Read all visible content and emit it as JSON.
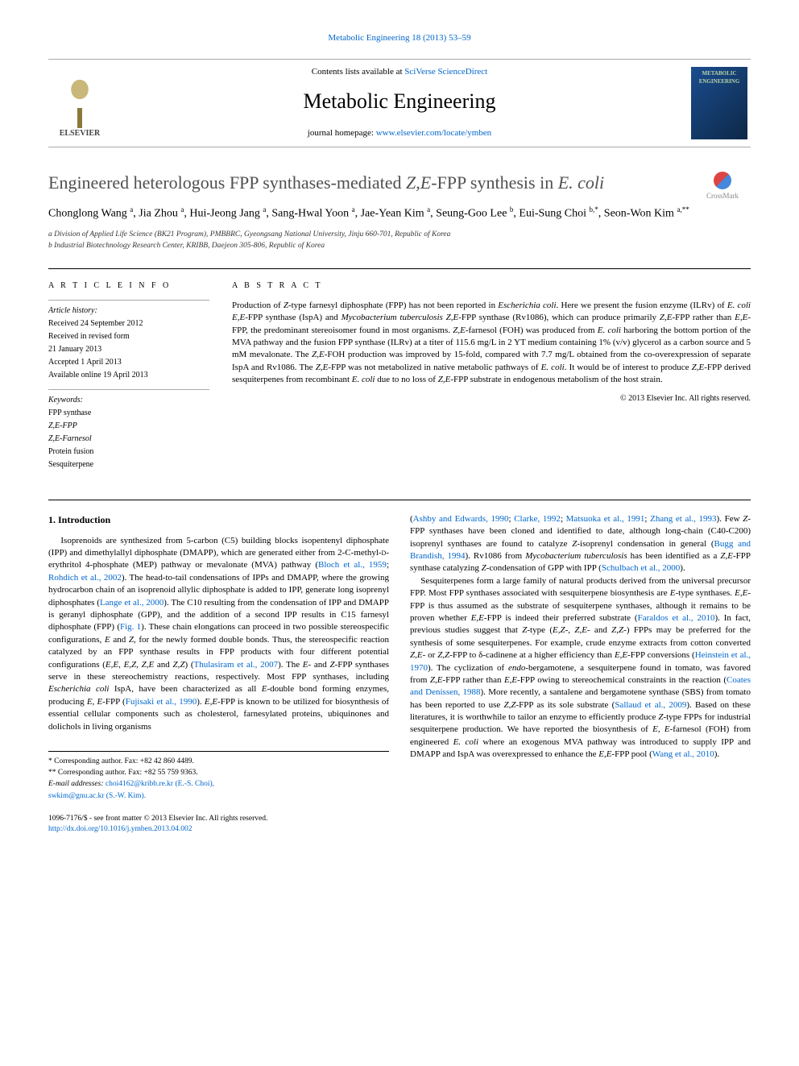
{
  "header_link": {
    "prefix": "",
    "journal": "Metabolic Engineering 18 (2013) 53–59"
  },
  "journal_box": {
    "contents_prefix": "Contents lists available at ",
    "contents_link": "SciVerse ScienceDirect",
    "journal_title": "Metabolic Engineering",
    "homepage_prefix": "journal homepage: ",
    "homepage_link": "www.elsevier.com/locate/ymben",
    "elsevier_label": "ELSEVIER",
    "cover_label": "METABOLIC ENGINEERING"
  },
  "crossmark": "CrossMark",
  "article_title_html": "Engineered heterologous FPP synthases-mediated <i>Z,E</i>-FPP synthesis in <i>E. coli</i>",
  "authors_html": "Chonglong Wang <sup>a</sup>, Jia Zhou <sup>a</sup>, Hui-Jeong Jang <sup>a</sup>, Sang-Hwal Yoon <sup>a</sup>, Jae-Yean Kim <sup>a</sup>, Seung-Goo Lee <sup>b</sup>, Eui-Sung Choi <sup>b,*</sup>, Seon-Won Kim <sup>a,**</sup>",
  "affiliations": [
    "a Division of Applied Life Science (BK21 Program), PMBBRC, Gyeongsang National University, Jinju 660-701, Republic of Korea",
    "b Industrial Biotechnology Research Center, KRIBB, Daejeon 305-806, Republic of Korea"
  ],
  "info": {
    "heading": "A R T I C L E   I N F O",
    "history_label": "Article history:",
    "history": [
      "Received 24 September 2012",
      "Received in revised form",
      "21 January 2013",
      "Accepted 1 April 2013",
      "Available online 19 April 2013"
    ],
    "keywords_label": "Keywords:",
    "keywords": [
      "FPP synthase",
      "Z,E-FPP",
      "Z,E-Farnesol",
      "Protein fusion",
      "Sesquiterpene"
    ]
  },
  "abstract": {
    "heading": "A B S T R A C T",
    "text_html": "Production of <i>Z</i>-type farnesyl diphosphate (FPP) has not been reported in <i>Escherichia coli</i>. Here we present the fusion enzyme (ILRv) of <i>E. coli E,E</i>-FPP synthase (IspA) and <i>Mycobacterium tuberculosis Z,E</i>-FPP synthase (Rv1086), which can produce primarily <i>Z,E</i>-FPP rather than <i>E,E</i>-FPP, the predominant stereoisomer found in most organisms. <i>Z,E</i>-farnesol (FOH) was produced from <i>E. coli</i> harboring the bottom portion of the MVA pathway and the fusion FPP synthase (ILRv) at a titer of 115.6 mg/L in 2 YT medium containing 1% (v/v) glycerol as a carbon source and 5 mM mevalonate. The <i>Z,E</i>-FOH production was improved by 15-fold, compared with 7.7 mg/L obtained from the co-overexpression of separate IspA and Rv1086. The <i>Z,E</i>-FPP was not metabolized in native metabolic pathways of <i>E. coli</i>. It would be of interest to produce <i>Z,E</i>-FPP derived sesquiterpenes from recombinant <i>E. coli</i> due to no loss of <i>Z,E</i>-FPP substrate in endogenous metabolism of the host strain.",
    "copyright": "© 2013 Elsevier Inc. All rights reserved."
  },
  "intro": {
    "heading": "1.  Introduction",
    "col1_html": "Isoprenoids are synthesized from 5-carbon (C5) building blocks isopentenyl diphosphate (IPP) and dimethylallyl diphosphate (DMAPP), which are generated either from 2-C-methyl-<span style='font-variant:small-caps'>d</span>-erythritol 4-phosphate (MEP) pathway or mevalonate (MVA) pathway (<a href='#'>Bloch et al., 1959</a>; <a href='#'>Rohdich et al., 2002</a>). The head-to-tail condensations of IPPs and DMAPP, where the growing hydrocarbon chain of an isoprenoid allylic diphosphate is added to IPP, generate long isoprenyl diphosphates (<a href='#'>Lange et al., 2000</a>). The C10 resulting from the condensation of IPP and DMAPP is geranyl diphosphate (GPP), and the addition of a second IPP results in C15 farnesyl diphosphate (FPP) (<a href='#'>Fig. 1</a>). These chain elongations can proceed in two possible stereospecific configurations, <i>E</i> and <i>Z</i>, for the newly formed double bonds. Thus, the stereospecific reaction catalyzed by an FPP synthase results in FPP products with four different potential configurations (<i>E,E</i>, <i>E,Z</i>, <i>Z,E</i> and <i>Z,Z</i>) (<a href='#'>Thulasiram et al., 2007</a>). The <i>E</i>- and <i>Z</i>-FPP synthases serve in these stereochemistry reactions, respectively. Most FPP synthases, including <i>Escherichia coli</i> IspA, have been characterized as all <i>E</i>-double bond forming enzymes, producing <i>E, E</i>-FPP (<a href='#'>Fujisaki et al., 1990</a>). <i>E,E</i>-FPP is known to be utilized for biosynthesis of essential cellular components such as cholesterol, farnesylated proteins, ubiquinones and dolichols in living organisms",
    "col2_html": "(<a href='#'>Ashby and Edwards, 1990</a>; <a href='#'>Clarke, 1992</a>; <a href='#'>Matsuoka et al., 1991</a>; <a href='#'>Zhang et al., 1993</a>). Few <i>Z</i>-FPP synthases have been cloned and identified to date, although long-chain (C40-C200) isoprenyl synthases are found to catalyze <i>Z</i>-isoprenyl condensation in general (<a href='#'>Bugg and Brandish, 1994</a>). Rv1086 from <i>Mycobacterium tuberculosis</i> has been identified as a <i>Z,E</i>-FPP synthase catalyzing <i>Z</i>-condensation of GPP with IPP (<a href='#'>Schulbach et al., 2000</a>).<br>&nbsp;&nbsp;&nbsp;&nbsp;Sesquiterpenes form a large family of natural products derived from the universal precursor FPP. Most FPP synthases associated with sesquiterpene biosynthesis are <i>E</i>-type synthases. <i>E,E</i>-FPP is thus assumed as the substrate of sesquiterpene synthases, although it remains to be proven whether <i>E,E</i>-FPP is indeed their preferred substrate (<a href='#'>Faraldos et al., 2010</a>). In fact, previous studies suggest that <i>Z</i>-type (<i>E,Z</i>-, <i>Z,E</i>- and <i>Z,Z</i>-) FPPs may be preferred for the synthesis of some sesquiterpenes. For example, crude enzyme extracts from cotton converted <i>Z,E</i>- or <i>Z,Z</i>-FPP to δ-cadinene at a higher efficiency than <i>E,E</i>-FPP conversions (<a href='#'>Heinstein et al., 1970</a>). The cyclization of <i>endo</i>-bergamotene, a sesquiterpene found in tomato, was favored from <i>Z,E</i>-FPP rather than <i>E,E</i>-FPP owing to stereochemical constraints in the reaction (<a href='#'>Coates and Denissen, 1988</a>). More recently, a santalene and bergamotene synthase (SBS) from tomato has been reported to use <i>Z,Z</i>-FPP as its sole substrate (<a href='#'>Sallaud et al., 2009</a>). Based on these literatures, it is worthwhile to tailor an enzyme to efficiently produce <i>Z</i>-type FPPs for industrial sesquiterpene production. We have reported the biosynthesis of <i>E, E</i>-farnesol (FOH) from engineered <i>E. coli</i> where an exogenous MVA pathway was introduced to supply IPP and DMAPP and IspA was overexpressed to enhance the <i>E,E</i>-FPP pool (<a href='#'>Wang et al., 2010</a>)."
  },
  "footnotes": {
    "c1": "* Corresponding author. Fax: +82 42 860 4489.",
    "c2": "** Corresponding author. Fax: +82 55 759 9363.",
    "email_label": "E-mail addresses:",
    "email1": " choi4162@kribb.re.kr (E.-S. Choi),",
    "email2": "swkim@gnu.ac.kr (S.-W. Kim)."
  },
  "footer": {
    "left1": "1096-7176/$ - see front matter © 2013 Elsevier Inc. All rights reserved.",
    "left2": "http://dx.doi.org/10.1016/j.ymben.2013.04.002"
  },
  "colors": {
    "link": "#0066cc",
    "text": "#000000",
    "title_gray": "#505050",
    "rule": "#000000"
  }
}
